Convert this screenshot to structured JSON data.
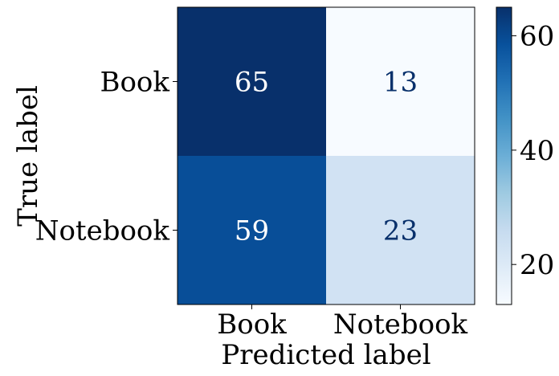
{
  "chart_data": {
    "type": "heatmap",
    "title": "",
    "xlabel": "Predicted label",
    "ylabel": "True label",
    "x_categories": [
      "Book",
      "Notebook"
    ],
    "y_categories": [
      "Book",
      "Notebook"
    ],
    "values": [
      [
        65,
        13
      ],
      [
        59,
        23
      ]
    ],
    "colormap": "Blues",
    "colorbar": {
      "min": 13,
      "max": 65,
      "ticks": [
        20,
        40,
        60
      ]
    },
    "colors": {
      "dark_text": "#08306b",
      "light_text": "#ffffff"
    }
  }
}
